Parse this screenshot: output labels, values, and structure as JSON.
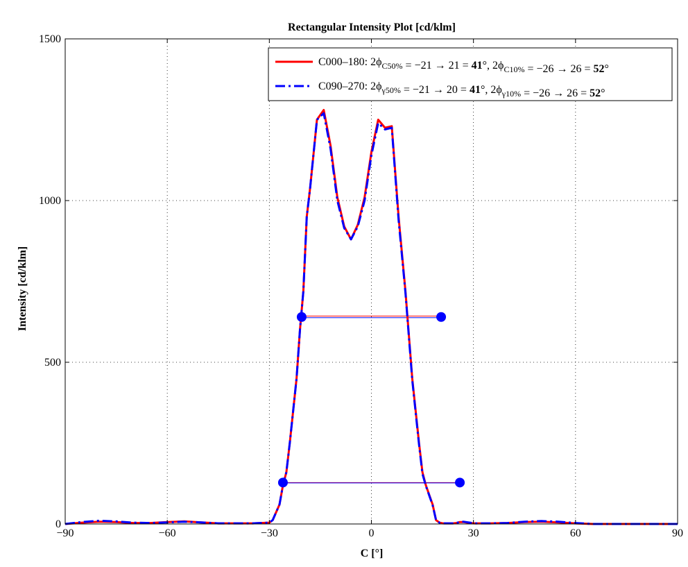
{
  "chart_data": {
    "type": "line",
    "title": "Rectangular Intensity Plot [cd/klm]",
    "xlabel": "C [°]",
    "ylabel": "Intensity [cd/klm]",
    "xlim": [
      -90,
      90
    ],
    "ylim": [
      0,
      1500
    ],
    "x_ticks": [
      -90,
      -60,
      -30,
      0,
      30,
      60,
      90
    ],
    "y_ticks": [
      0,
      500,
      1000,
      1500
    ],
    "grid": true,
    "legend_position": "top-right",
    "series": [
      {
        "name": "C000–180",
        "legend_parts": [
          {
            "t": "C000–180: 2ϕ"
          },
          {
            "t": "C50%",
            "sub": true
          },
          {
            "t": " = −21 → 21 = "
          },
          {
            "t": "41",
            "bold": true
          },
          {
            "t": "°, 2ϕ"
          },
          {
            "t": "C10%",
            "sub": true
          },
          {
            "t": " = −26 → 26 = "
          },
          {
            "t": "52",
            "bold": true
          },
          {
            "t": "°"
          }
        ],
        "color": "#ff0000",
        "style": "solid",
        "x": [
          -90,
          -85,
          -80,
          -75,
          -70,
          -65,
          -60,
          -55,
          -50,
          -45,
          -40,
          -35,
          -30,
          -29,
          -27,
          -26,
          -25,
          -24,
          -22,
          -21,
          -20,
          -19,
          -18,
          -16,
          -15,
          -14,
          -12,
          -10,
          -8,
          -6,
          -4,
          -2,
          0,
          2,
          4,
          6,
          8,
          10,
          12,
          14,
          15,
          16,
          18,
          19,
          20,
          21,
          22,
          24,
          25,
          26,
          27,
          29,
          30,
          35,
          40,
          45,
          50,
          55,
          60,
          65,
          70,
          75,
          80,
          85,
          90
        ],
        "y": [
          0,
          4,
          7,
          6,
          3,
          3,
          6,
          8,
          5,
          2,
          2,
          2,
          4,
          12,
          60,
          120,
          160,
          250,
          450,
          600,
          720,
          950,
          1040,
          1250,
          1265,
          1280,
          1170,
          1010,
          920,
          880,
          925,
          1010,
          1150,
          1250,
          1225,
          1230,
          950,
          720,
          450,
          250,
          160,
          120,
          60,
          12,
          4,
          2,
          2,
          2,
          3,
          6,
          6,
          3,
          2,
          2,
          3,
          6,
          7,
          5,
          2,
          0,
          0,
          0,
          0,
          0,
          0
        ]
      },
      {
        "name": "C090–270",
        "legend_parts": [
          {
            "t": "C090–270: 2ϕ"
          },
          {
            "t": "γ50%",
            "sub": true
          },
          {
            "t": " = −21 → 20 = "
          },
          {
            "t": "41",
            "bold": true
          },
          {
            "t": "°, 2ϕ"
          },
          {
            "t": "γ10%",
            "sub": true
          },
          {
            "t": " = −26 → 26 = "
          },
          {
            "t": "52",
            "bold": true
          },
          {
            "t": "°"
          }
        ],
        "color": "#0000ff",
        "style": "dashdot",
        "x": [
          -90,
          -85,
          -80,
          -75,
          -70,
          -65,
          -60,
          -55,
          -50,
          -45,
          -40,
          -35,
          -30,
          -29,
          -27,
          -26,
          -25,
          -24,
          -22,
          -21,
          -20,
          -19,
          -18,
          -16,
          -15,
          -14,
          -12,
          -10,
          -8,
          -6,
          -4,
          -2,
          0,
          2,
          4,
          6,
          8,
          10,
          12,
          14,
          15,
          16,
          18,
          19,
          20,
          21,
          22,
          24,
          25,
          26,
          27,
          29,
          30,
          35,
          40,
          45,
          50,
          55,
          60,
          65,
          70,
          75,
          80,
          85,
          90
        ],
        "y": [
          0,
          6,
          10,
          8,
          4,
          3,
          5,
          7,
          5,
          2,
          2,
          2,
          4,
          12,
          60,
          120,
          160,
          250,
          450,
          600,
          720,
          950,
          1040,
          1250,
          1260,
          1270,
          1160,
          1000,
          915,
          880,
          920,
          1000,
          1140,
          1240,
          1220,
          1225,
          940,
          715,
          445,
          245,
          155,
          118,
          58,
          12,
          4,
          2,
          2,
          2,
          3,
          6,
          7,
          4,
          2,
          2,
          3,
          7,
          9,
          7,
          3,
          0,
          0,
          0,
          0,
          0,
          0
        ]
      }
    ],
    "markers": [
      {
        "x": -20.5,
        "y": 640,
        "color": "#0000ff"
      },
      {
        "x": 20.5,
        "y": 640,
        "color": "#0000ff"
      },
      {
        "x": -26,
        "y": 128,
        "color": "#0000ff"
      },
      {
        "x": 26,
        "y": 128,
        "color": "#0000ff"
      }
    ],
    "reference_lines": [
      {
        "x1": -20.5,
        "x2": 20.5,
        "y": 643,
        "color": "#ff0000"
      },
      {
        "x1": -20.5,
        "x2": 20.5,
        "y": 638,
        "color": "#0000ff"
      },
      {
        "x1": -26,
        "x2": 26,
        "y": 128,
        "color": "#ff0000"
      },
      {
        "x1": -26,
        "x2": 26,
        "y": 127,
        "color": "#0000ff"
      }
    ]
  }
}
